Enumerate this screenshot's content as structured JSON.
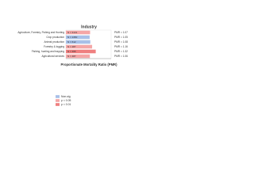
{
  "chart_data": {
    "type": "bar",
    "orientation": "horizontal",
    "title": "Industry",
    "x_label": "Proportionate Mortality Ratio (PMR)",
    "categories": [
      "Agriculture, Forestry, Fishing and Hunting",
      "Crop production",
      "Animal production",
      "Forestry & logging",
      "Fishing, hunting and trapping",
      "Agricultural services"
    ],
    "values": [
      1.07,
      1.05,
      1.08,
      1.16,
      1.32,
      1.06
    ],
    "value_labels": [
      "PMR = 1.07",
      "PMR = 1.05",
      "PMR = 1.08",
      "PMR = 1.16",
      "PMR = 1.32",
      "PMR = 1.06"
    ],
    "n_labels": [
      "N = 3131",
      "N = 1350",
      "N = 612",
      "N = 287",
      "N = 395",
      "N = 487"
    ],
    "colors": [
      "#f4a6a6",
      "#a8c0e8",
      "#a8c0e8",
      "#f4a6a6",
      "#ef7f7f",
      "#f4a6a6"
    ],
    "xlim": [
      0,
      2
    ],
    "legend": [
      {
        "name": "Non-sig",
        "color": "#a8c0e8"
      },
      {
        "name": "p < 0.05",
        "color": "#f4a6a6"
      },
      {
        "name": "p < 0.01",
        "color": "#ef7f7f"
      }
    ]
  }
}
